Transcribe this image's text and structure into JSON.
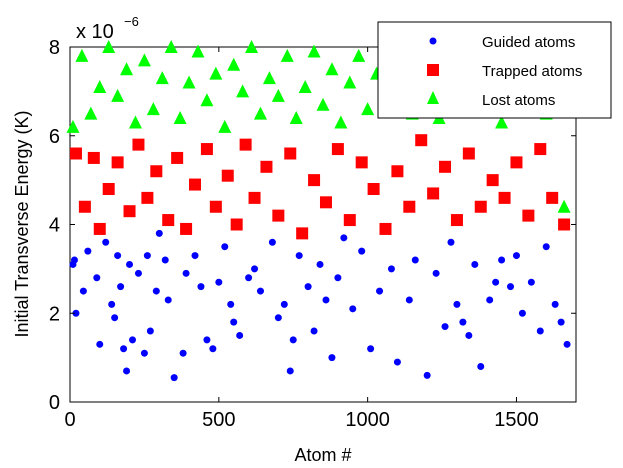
{
  "chart_data": {
    "type": "scatter",
    "xlabel": "Atom #",
    "ylabel": "Initial Transverse Energy (K)",
    "xlim": [
      0,
      1700
    ],
    "ylim": [
      0,
      8
    ],
    "xticks": [
      "0",
      "500",
      "1000",
      "1500"
    ],
    "yticks": [
      "0",
      "2",
      "4",
      "6",
      "8"
    ],
    "exponent": {
      "base": "x 10",
      "power": "−6"
    },
    "grid": false,
    "legend_position": "top-right",
    "series": [
      {
        "name": "Guided atoms",
        "marker": "circle",
        "color": "#0000ff",
        "x": [
          10,
          15,
          20,
          45,
          60,
          90,
          100,
          120,
          140,
          150,
          160,
          170,
          180,
          190,
          200,
          210,
          230,
          250,
          260,
          270,
          290,
          300,
          320,
          330,
          350,
          380,
          390,
          420,
          440,
          460,
          480,
          500,
          520,
          540,
          550,
          570,
          600,
          620,
          640,
          680,
          700,
          720,
          740,
          750,
          770,
          800,
          820,
          840,
          860,
          880,
          900,
          920,
          950,
          980,
          1010,
          1040,
          1080,
          1100,
          1140,
          1160,
          1200,
          1230,
          1260,
          1280,
          1300,
          1320,
          1340,
          1360,
          1380,
          1410,
          1430,
          1450,
          1480,
          1500,
          1520,
          1550,
          1580,
          1600,
          1630,
          1650,
          1670
        ],
        "y": [
          3.1,
          3.2,
          2.0,
          2.5,
          3.4,
          2.8,
          1.3,
          3.6,
          2.2,
          1.9,
          3.3,
          2.6,
          1.2,
          0.7,
          3.1,
          1.4,
          2.9,
          1.1,
          3.3,
          1.6,
          2.5,
          3.8,
          3.2,
          2.3,
          0.55,
          1.1,
          2.9,
          3.3,
          2.6,
          1.4,
          1.2,
          2.7,
          3.5,
          2.2,
          1.8,
          1.5,
          2.8,
          3.0,
          2.5,
          3.6,
          1.9,
          2.2,
          0.7,
          1.4,
          3.3,
          2.6,
          1.6,
          3.1,
          2.3,
          1.0,
          2.8,
          3.7,
          2.1,
          3.4,
          1.2,
          2.5,
          3.0,
          0.9,
          2.3,
          3.2,
          0.6,
          2.9,
          1.7,
          3.6,
          2.2,
          1.8,
          1.5,
          3.1,
          0.8,
          2.3,
          2.7,
          3.2,
          2.6,
          3.3,
          2.0,
          2.7,
          1.6,
          3.5,
          2.2,
          1.8,
          1.3
        ]
      },
      {
        "name": "Trapped atoms",
        "marker": "square",
        "color": "#ff0000",
        "x": [
          20,
          50,
          80,
          100,
          130,
          160,
          200,
          230,
          260,
          290,
          330,
          360,
          390,
          420,
          460,
          490,
          530,
          560,
          590,
          620,
          660,
          700,
          740,
          780,
          820,
          860,
          900,
          940,
          980,
          1020,
          1060,
          1100,
          1140,
          1180,
          1220,
          1260,
          1300,
          1340,
          1380,
          1420,
          1460,
          1500,
          1540,
          1580,
          1620,
          1660
        ],
        "y": [
          5.6,
          4.4,
          5.5,
          3.9,
          4.8,
          5.4,
          4.3,
          5.8,
          4.6,
          5.2,
          4.1,
          5.5,
          3.9,
          4.9,
          5.7,
          4.4,
          5.1,
          4.0,
          5.8,
          4.6,
          5.3,
          4.2,
          5.6,
          3.8,
          5.0,
          4.5,
          5.7,
          4.1,
          5.4,
          4.8,
          3.9,
          5.2,
          4.4,
          5.9,
          4.7,
          5.3,
          4.1,
          5.6,
          4.4,
          5.0,
          4.6,
          5.4,
          4.2,
          5.7,
          4.6,
          4.0
        ]
      },
      {
        "name": "Lost atoms",
        "marker": "triangle",
        "color": "#00ff00",
        "x": [
          10,
          40,
          70,
          100,
          130,
          160,
          190,
          220,
          250,
          280,
          310,
          340,
          370,
          400,
          430,
          460,
          490,
          520,
          550,
          580,
          610,
          640,
          670,
          700,
          730,
          760,
          790,
          820,
          850,
          880,
          910,
          940,
          970,
          1000,
          1030,
          1060,
          1090,
          1120,
          1150,
          1180,
          1210,
          1240,
          1270,
          1300,
          1330,
          1360,
          1390,
          1420,
          1450,
          1480,
          1510,
          1540,
          1570,
          1600,
          1630,
          1660
        ],
        "y": [
          6.2,
          7.8,
          6.5,
          7.1,
          8.0,
          6.9,
          7.5,
          6.3,
          7.7,
          6.6,
          7.3,
          8.0,
          6.4,
          7.2,
          7.9,
          6.8,
          7.4,
          6.2,
          7.6,
          7.0,
          8.0,
          6.5,
          7.3,
          6.9,
          7.8,
          6.4,
          7.1,
          7.9,
          6.7,
          7.5,
          6.3,
          7.2,
          7.8,
          6.6,
          7.4,
          8.0,
          6.9,
          7.3,
          6.5,
          7.7,
          7.0,
          6.4,
          7.5,
          6.8,
          7.9,
          6.6,
          7.2,
          7.6,
          6.3,
          7.0,
          7.8,
          6.7,
          7.3,
          6.5,
          7.1,
          4.4
        ]
      }
    ]
  }
}
